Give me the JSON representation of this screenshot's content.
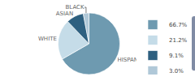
{
  "chart_data": {
    "type": "pie",
    "categories": [
      "HISPANIC",
      "WHITE",
      "ASIAN",
      "BLACK"
    ],
    "values": [
      66.7,
      21.2,
      9.1,
      3.0
    ],
    "value_labels": [
      "66.7%",
      "21.2%",
      "9.1%",
      "3.0%"
    ],
    "colors": [
      "#6e9ab0",
      "#c5dce8",
      "#2e6080",
      "#b0c8d8"
    ],
    "legend": "right"
  }
}
